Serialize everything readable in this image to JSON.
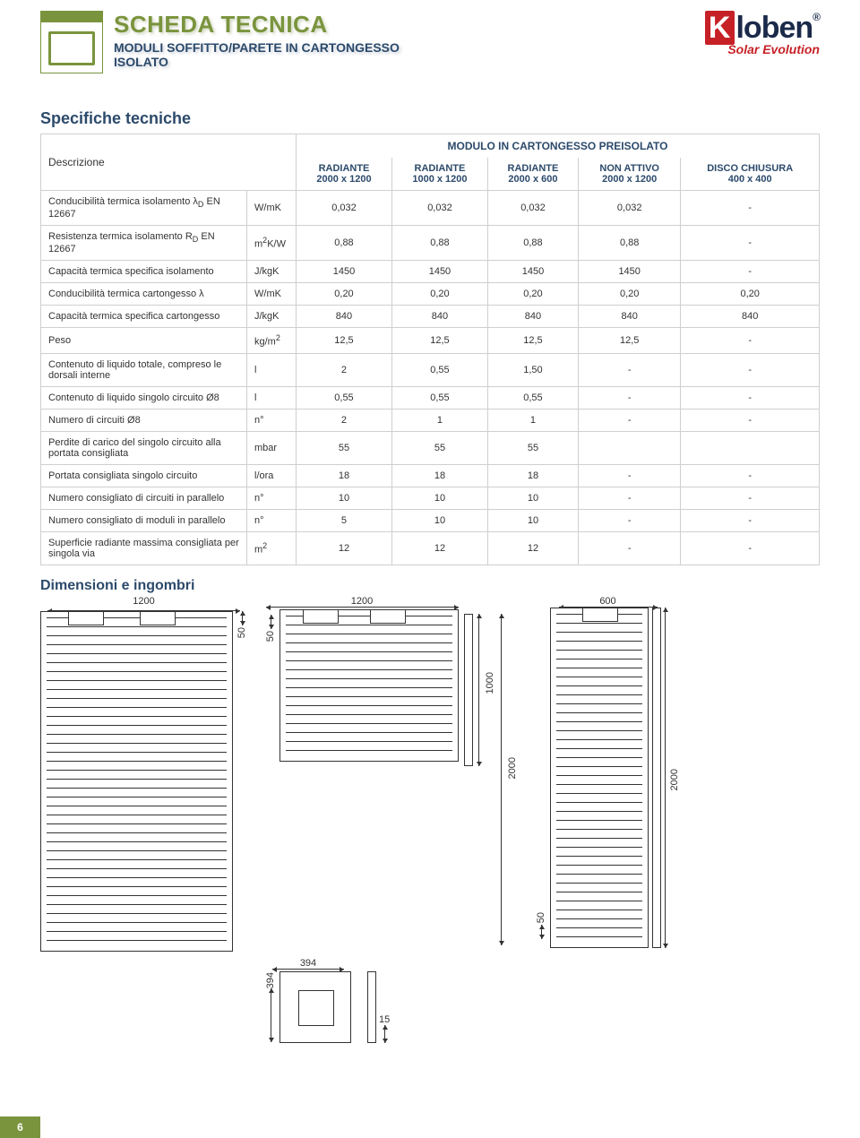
{
  "header": {
    "title": "SCHEDA TECNICA",
    "subtitle1": "MODULI SOFFITTO/PARETE IN CARTONGESSO",
    "subtitle2": "ISOLATO",
    "logo_brand": "loben",
    "logo_k": "K",
    "logo_r": "®",
    "logo_tagline": "Solar Evolution"
  },
  "section_spec": "Specifiche tecniche",
  "table": {
    "desc_label": "Descrizione",
    "superhead": "MODULO IN CARTONGESSO PREISOLATO",
    "columns": [
      {
        "l1": "RADIANTE",
        "l2": "2000 x 1200"
      },
      {
        "l1": "RADIANTE",
        "l2": "1000 x 1200"
      },
      {
        "l1": "RADIANTE",
        "l2": "2000 x 600"
      },
      {
        "l1": "NON ATTIVO",
        "l2": "2000 x 1200"
      },
      {
        "l1": "DISCO CHIUSURA",
        "l2": "400 x 400"
      }
    ],
    "rows": [
      {
        "label": "Conducibilità termica isolamento λ_D EN 12667",
        "unit": "W/mK",
        "v": [
          "0,032",
          "0,032",
          "0,032",
          "0,032",
          "-"
        ]
      },
      {
        "label": "Resistenza termica isolamento R_D EN 12667",
        "unit": "m²K/W",
        "v": [
          "0,88",
          "0,88",
          "0,88",
          "0,88",
          "-"
        ]
      },
      {
        "label": "Capacità termica specifica isolamento",
        "unit": "J/kgK",
        "v": [
          "1450",
          "1450",
          "1450",
          "1450",
          "-"
        ]
      },
      {
        "label": "Conducibilità termica cartongesso λ",
        "unit": "W/mK",
        "v": [
          "0,20",
          "0,20",
          "0,20",
          "0,20",
          "0,20"
        ]
      },
      {
        "label": "Capacità termica specifica cartongesso",
        "unit": "J/kgK",
        "v": [
          "840",
          "840",
          "840",
          "840",
          "840"
        ]
      },
      {
        "label": "Peso",
        "unit": "kg/m²",
        "v": [
          "12,5",
          "12,5",
          "12,5",
          "12,5",
          "-"
        ]
      },
      {
        "label": "Contenuto di liquido totale, compreso le dorsali interne",
        "unit": "l",
        "v": [
          "2",
          "0,55",
          "1,50",
          "-",
          "-"
        ]
      },
      {
        "label": "Contenuto di liquido singolo circuito Ø8",
        "unit": "l",
        "v": [
          "0,55",
          "0,55",
          "0,55",
          "-",
          "-"
        ]
      },
      {
        "label": "Numero di circuiti Ø8",
        "unit": "n°",
        "v": [
          "2",
          "1",
          "1",
          "-",
          "-"
        ]
      },
      {
        "label": "Perdite di carico del singolo circuito alla portata consigliata",
        "unit": "mbar",
        "v": [
          "55",
          "55",
          "55",
          "",
          ""
        ]
      },
      {
        "label": "Portata consigliata singolo circuito",
        "unit": "l/ora",
        "v": [
          "18",
          "18",
          "18",
          "-",
          "-"
        ]
      },
      {
        "label": "Numero consigliato di circuiti in parallelo",
        "unit": "n°",
        "v": [
          "10",
          "10",
          "10",
          "-",
          "-"
        ]
      },
      {
        "label": "Numero consigliato di moduli in parallelo",
        "unit": "n°",
        "v": [
          "5",
          "10",
          "10",
          "-",
          "-"
        ]
      },
      {
        "label": "Superficie radiante massima consigliata per singola via",
        "unit": "m²",
        "v": [
          "12",
          "12",
          "12",
          "-",
          "-"
        ]
      }
    ]
  },
  "section_dim": "Dimensioni e ingombri",
  "dims": {
    "w1200_a": "1200",
    "w1200_b": "1200",
    "w600": "600",
    "w394_a": "394",
    "w394_b": "394",
    "h50_a": "50",
    "h50_b": "50",
    "h50_c": "50",
    "h2000_a": "2000",
    "h2000_b": "2000",
    "h1000": "1000",
    "h15": "15"
  },
  "page_number": "6",
  "colors": {
    "green": "#7a943d",
    "blue": "#2c4a6b",
    "red": "#c62127",
    "border": "#cfcfcf",
    "text": "#333333"
  }
}
